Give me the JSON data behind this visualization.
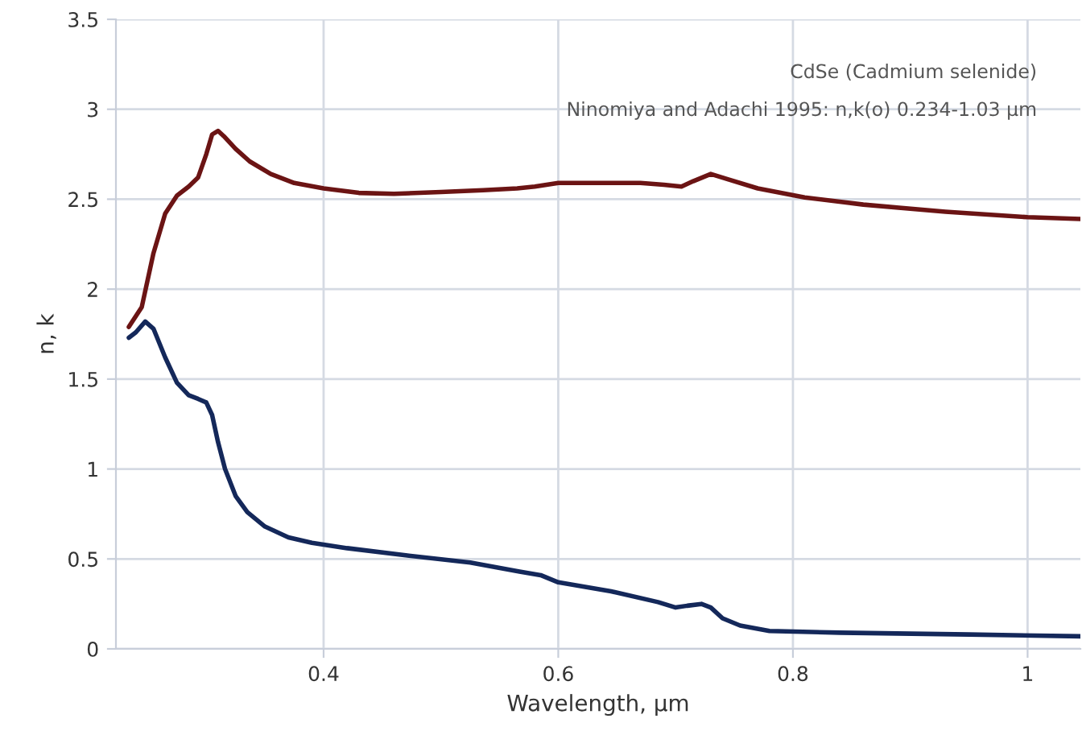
{
  "chart_data": {
    "type": "line",
    "xlabel": "Wavelength, µm",
    "ylabel": "n, k",
    "annotations": [
      "CdSe (Cadmium selenide)",
      "Ninomiya and Adachi 1995: n,k(o) 0.234-1.03 µm"
    ],
    "series": [
      {
        "color": "#6b1414",
        "x": [
          0.234,
          0.245,
          0.255,
          0.265,
          0.275,
          0.285,
          0.293,
          0.3,
          0.305,
          0.31,
          0.315,
          0.325,
          0.337,
          0.355,
          0.375,
          0.4,
          0.43,
          0.46,
          0.5,
          0.536,
          0.565,
          0.58,
          0.6,
          0.64,
          0.67,
          0.69,
          0.705,
          0.715,
          0.73,
          0.745,
          0.77,
          0.81,
          0.86,
          0.93,
          1.0,
          1.045
        ],
        "values": [
          1.79,
          1.9,
          2.2,
          2.42,
          2.52,
          2.57,
          2.62,
          2.75,
          2.86,
          2.88,
          2.85,
          2.78,
          2.71,
          2.64,
          2.59,
          2.56,
          2.535,
          2.53,
          2.54,
          2.55,
          2.56,
          2.57,
          2.59,
          2.59,
          2.59,
          2.58,
          2.57,
          2.6,
          2.64,
          2.61,
          2.56,
          2.51,
          2.47,
          2.43,
          2.4,
          2.39
        ]
      },
      {
        "color": "#14285a",
        "x": [
          0.234,
          0.24,
          0.248,
          0.255,
          0.265,
          0.275,
          0.285,
          0.293,
          0.3,
          0.305,
          0.31,
          0.316,
          0.325,
          0.335,
          0.35,
          0.37,
          0.39,
          0.42,
          0.47,
          0.525,
          0.567,
          0.585,
          0.6,
          0.645,
          0.685,
          0.7,
          0.71,
          0.722,
          0.73,
          0.74,
          0.755,
          0.78,
          0.84,
          0.95,
          1.045
        ],
        "values": [
          1.73,
          1.76,
          1.82,
          1.78,
          1.62,
          1.48,
          1.41,
          1.39,
          1.37,
          1.3,
          1.15,
          1.0,
          0.85,
          0.76,
          0.68,
          0.62,
          0.59,
          0.56,
          0.52,
          0.48,
          0.43,
          0.41,
          0.37,
          0.32,
          0.26,
          0.23,
          0.24,
          0.25,
          0.23,
          0.17,
          0.13,
          0.1,
          0.09,
          0.08,
          0.07
        ]
      }
    ],
    "xlim": [
      0.223,
      1.045
    ],
    "xticks": [
      0.4,
      0.6,
      0.8,
      {
        "value": 1,
        "label": "1"
      }
    ],
    "ylim": [
      0,
      3.5
    ],
    "yticks": [
      0,
      0.5,
      1,
      1.5,
      2,
      2.5,
      3,
      3.5
    ],
    "grid": true,
    "legend": false
  }
}
